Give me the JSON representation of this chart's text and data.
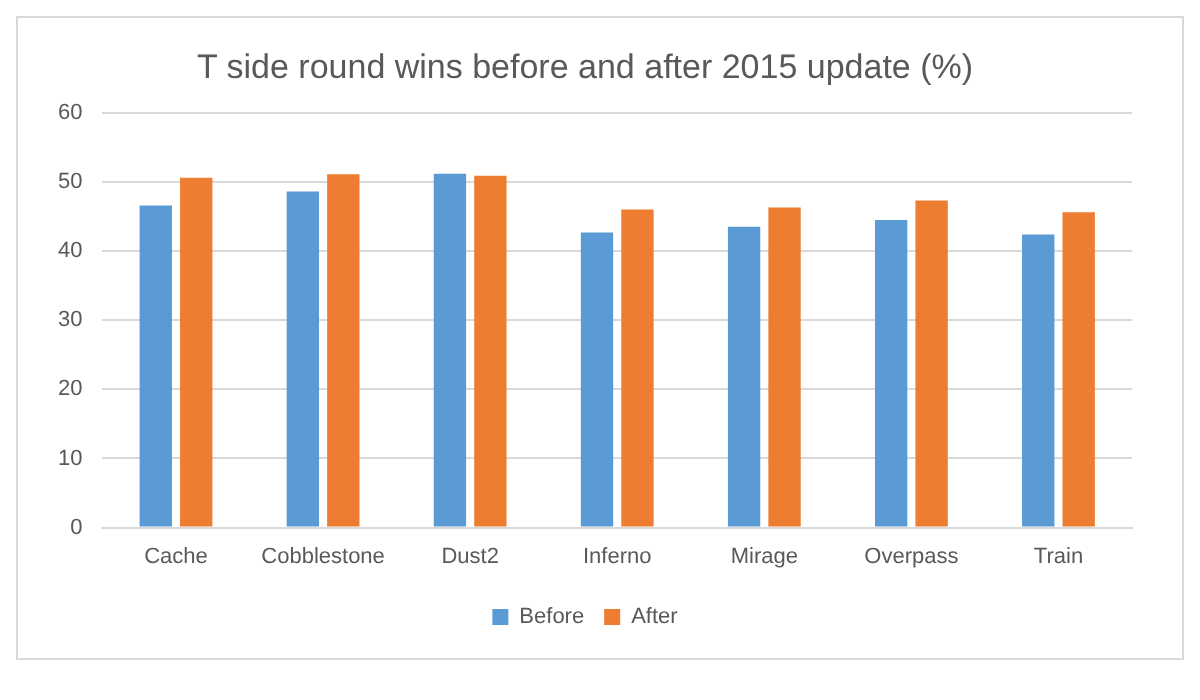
{
  "chart_data": {
    "type": "bar",
    "title": "T side round wins before and after 2015 update (%)",
    "categories": [
      "Cache",
      "Cobblestone",
      "Dust2",
      "Inferno",
      "Mirage",
      "Overpass",
      "Train"
    ],
    "series": [
      {
        "name": "Before",
        "color": "#5b9bd5",
        "values": [
          46.6,
          48.6,
          51.2,
          42.7,
          43.5,
          44.5,
          42.4
        ]
      },
      {
        "name": "After",
        "color": "#ed7d31",
        "values": [
          50.6,
          51.1,
          50.9,
          46.0,
          46.3,
          47.3,
          45.6
        ]
      }
    ],
    "ylim": [
      0,
      60
    ],
    "yticks": [
      0,
      10,
      20,
      30,
      40,
      50,
      60
    ],
    "grid": "y",
    "legend": "bottom"
  }
}
